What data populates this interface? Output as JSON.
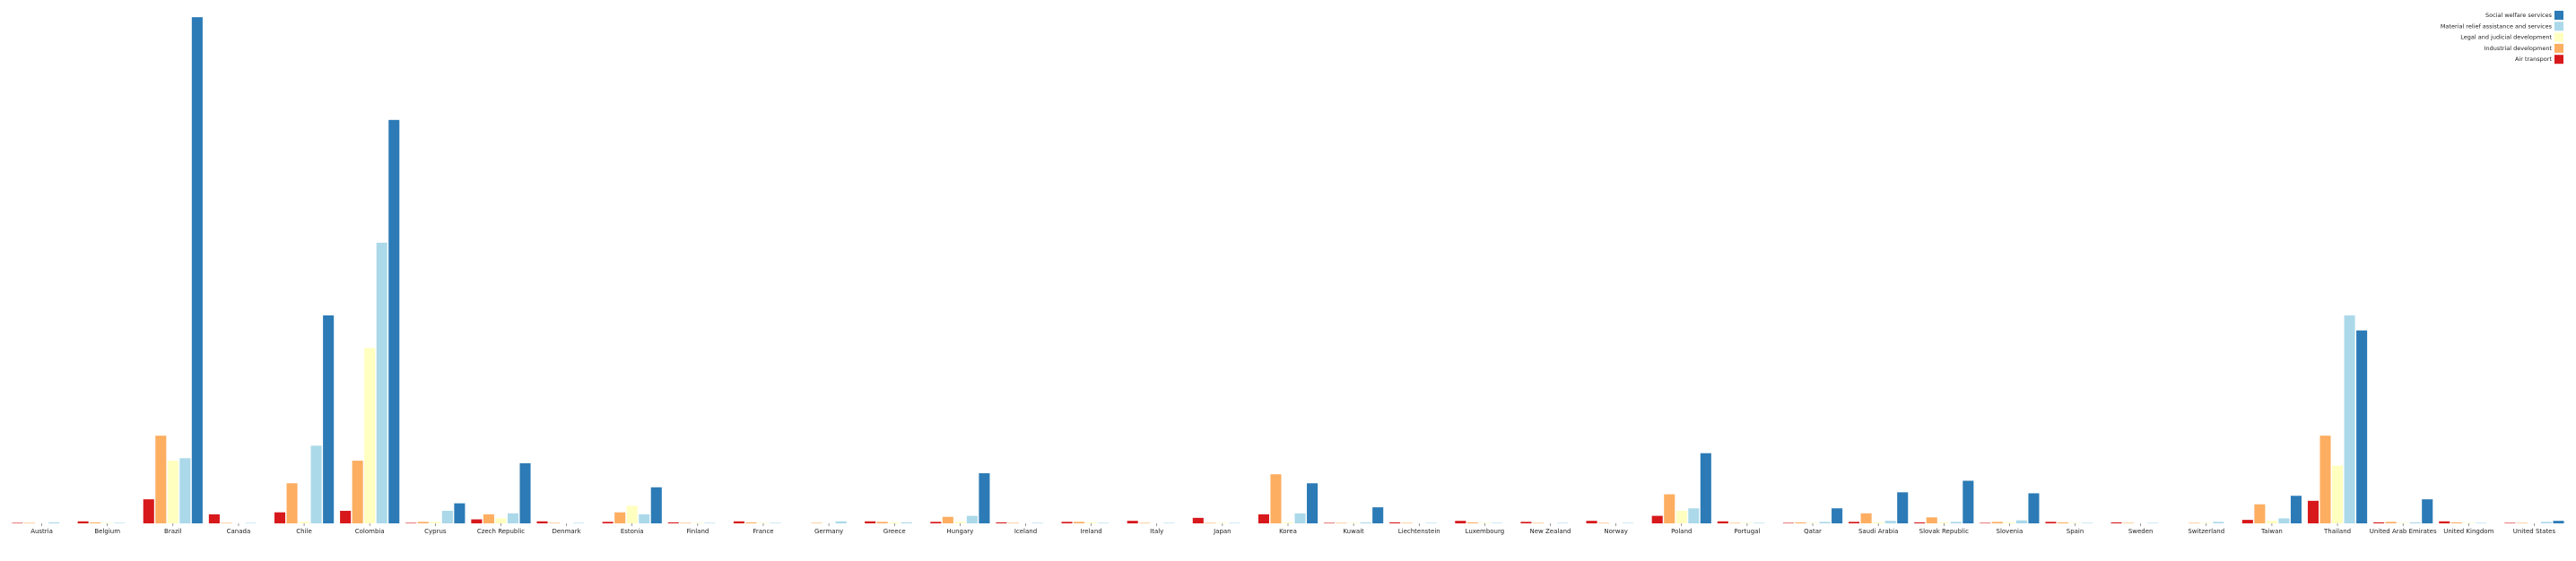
{
  "chart_data": {
    "type": "bar",
    "title": "",
    "xlabel": "",
    "ylabel": "",
    "ylim": [
      0,
      100
    ],
    "grid": false,
    "legend_position": "top-right",
    "categories": [
      "Austria",
      "Belgium",
      "Brazil",
      "Canada",
      "Chile",
      "Colombia",
      "Cyprus",
      "Czech Republic",
      "Denmark",
      "Estonia",
      "Finland",
      "France",
      "Germany",
      "Greece",
      "Hungary",
      "Iceland",
      "Ireland",
      "Italy",
      "Japan",
      "Korea",
      "Kuwait",
      "Liechtenstein",
      "Luxembourg",
      "New Zealand",
      "Norway",
      "Poland",
      "Portugal",
      "Qatar",
      "Saudi Arabia",
      "Slovak Republic",
      "Slovenia",
      "Spain",
      "Sweden",
      "Switzerland",
      "Taiwan",
      "Thailand",
      "United Arab Emirates",
      "United Kingdom",
      "United States"
    ],
    "series": [
      {
        "name": "Air transport",
        "color": "#d7191c",
        "values": [
          0.1,
          0.4,
          4.8,
          1.8,
          2.2,
          2.5,
          0.1,
          0.8,
          0.4,
          0.3,
          0.2,
          0.4,
          0,
          0.4,
          0.3,
          0.2,
          0.3,
          0.5,
          1.1,
          1.8,
          0.1,
          0.2,
          0.5,
          0.3,
          0.5,
          1.5,
          0.4,
          0.1,
          0.3,
          0.2,
          0.1,
          0.3,
          0.2,
          0,
          0.7,
          4.5,
          0.2,
          0.4,
          0.1
        ]
      },
      {
        "name": "Industrial development",
        "color": "#fdae61",
        "values": [
          0.1,
          0.2,
          17.5,
          0.1,
          8.0,
          12.5,
          0.3,
          1.8,
          0.1,
          2.2,
          0.1,
          0.2,
          0.1,
          0.3,
          1.3,
          0.1,
          0.3,
          0.1,
          0.1,
          9.8,
          0.1,
          0.1,
          0.2,
          0.1,
          0.1,
          5.8,
          0.1,
          0.2,
          2.0,
          1.2,
          0.3,
          0.2,
          0.1,
          0.1,
          3.8,
          17.5,
          0.3,
          0.2,
          0.1
        ]
      },
      {
        "name": "Legal and judicial development",
        "color": "#ffffbf",
        "values": [
          0,
          0.1,
          12.5,
          0,
          0.3,
          35.0,
          0.3,
          1.0,
          0,
          3.5,
          0.1,
          0.1,
          0,
          0.2,
          0.3,
          0,
          0.2,
          0,
          0.1,
          0.2,
          0.1,
          0,
          0.1,
          0,
          0,
          2.5,
          0.1,
          0.1,
          0.2,
          0.2,
          0.2,
          0.1,
          0,
          0.1,
          0.5,
          11.5,
          0.1,
          0.1,
          0
        ]
      },
      {
        "name": "Material relief assistance and services",
        "color": "#abd9e9",
        "values": [
          0.2,
          0.1,
          13.0,
          0.1,
          15.5,
          56.0,
          2.5,
          2.0,
          0.1,
          1.8,
          0.1,
          0.1,
          0.4,
          0.2,
          1.5,
          0.1,
          0.1,
          0.1,
          0.1,
          2.0,
          0.2,
          0.1,
          0.1,
          0.1,
          0.1,
          3.0,
          0.1,
          0.3,
          0.5,
          0.3,
          0.6,
          0.1,
          0.1,
          0.3,
          1.0,
          41.5,
          0.2,
          0.1,
          0.3
        ]
      },
      {
        "name": "Social welfare services",
        "color": "#2c7bb6",
        "values": [
          0,
          0,
          101.0,
          0,
          41.5,
          80.5,
          4.0,
          12.0,
          0,
          7.2,
          0,
          0,
          0,
          0,
          10.0,
          0,
          0,
          0,
          0,
          8.0,
          3.2,
          0,
          0,
          0,
          0,
          14.0,
          0,
          3.0,
          6.2,
          8.5,
          6.0,
          0,
          0,
          0,
          5.5,
          38.5,
          4.8,
          0,
          0.5
        ]
      }
    ]
  }
}
